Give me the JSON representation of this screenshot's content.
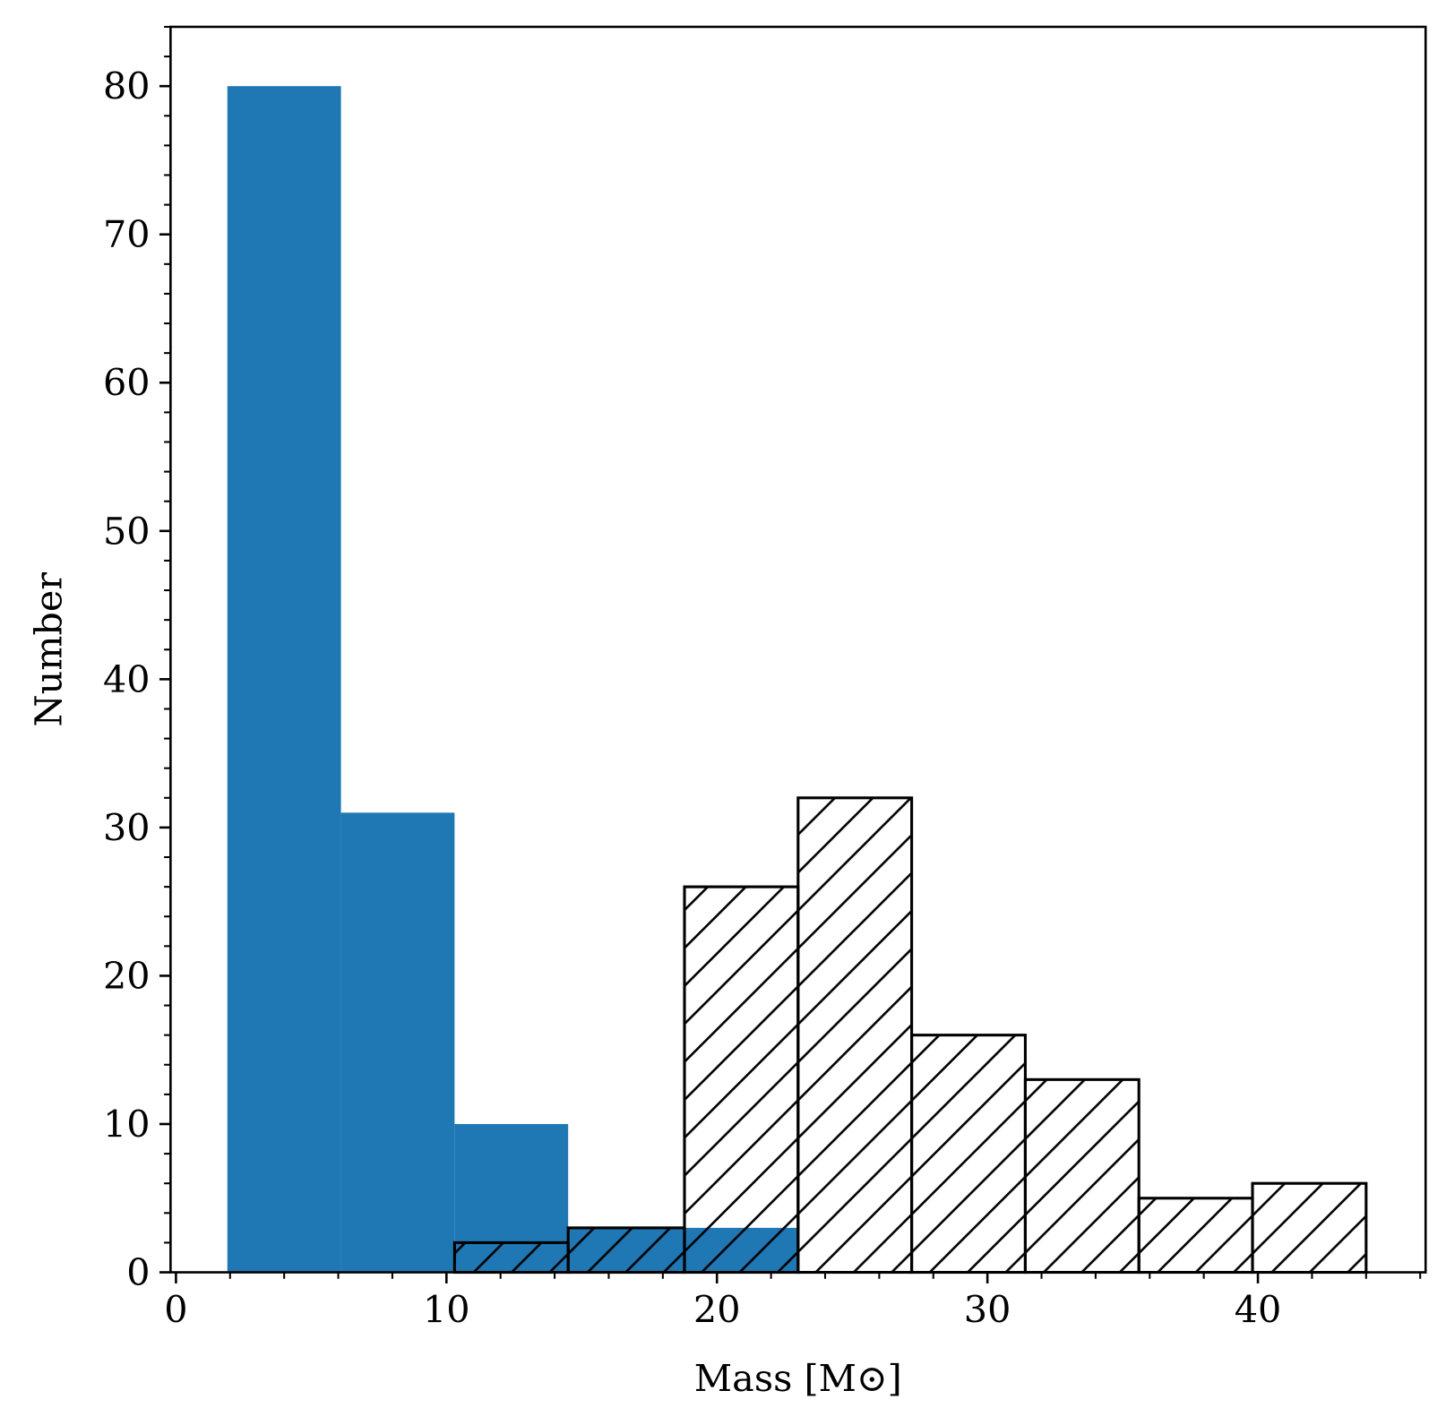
{
  "chart_data": {
    "type": "histogram",
    "xlabel": "Mass [M⊙]",
    "ylabel": "Number",
    "xlim": [
      -0.2,
      46.2
    ],
    "ylim": [
      0,
      84
    ],
    "xticks": [
      0,
      10,
      20,
      30,
      40
    ],
    "yticks": [
      0,
      10,
      20,
      30,
      40,
      50,
      60,
      70,
      80
    ],
    "xminorticks": [
      2,
      4,
      6,
      8,
      12,
      14,
      16,
      18,
      22,
      24,
      26,
      28,
      32,
      34,
      36,
      38,
      42,
      44,
      46
    ],
    "yminorticks": [
      2,
      4,
      6,
      8,
      12,
      14,
      16,
      18,
      22,
      24,
      26,
      28,
      32,
      34,
      36,
      38,
      42,
      44,
      46,
      48,
      52,
      54,
      56,
      58,
      62,
      64,
      66,
      68,
      72,
      74,
      76,
      78,
      82,
      84
    ],
    "series": [
      {
        "color": "#1f77b4",
        "fill": "solid",
        "bins": [
          1.9,
          6.1,
          10.3,
          14.5,
          18.8,
          23.0
        ],
        "values": [
          80,
          31,
          10,
          3,
          3
        ]
      },
      {
        "color": "#000000",
        "fill": "hatch",
        "bins": [
          10.3,
          14.5,
          18.8,
          23.0,
          27.2,
          31.4,
          35.6,
          39.8,
          44.0
        ],
        "values": [
          2,
          3,
          26,
          32,
          16,
          13,
          5,
          6
        ]
      }
    ]
  }
}
